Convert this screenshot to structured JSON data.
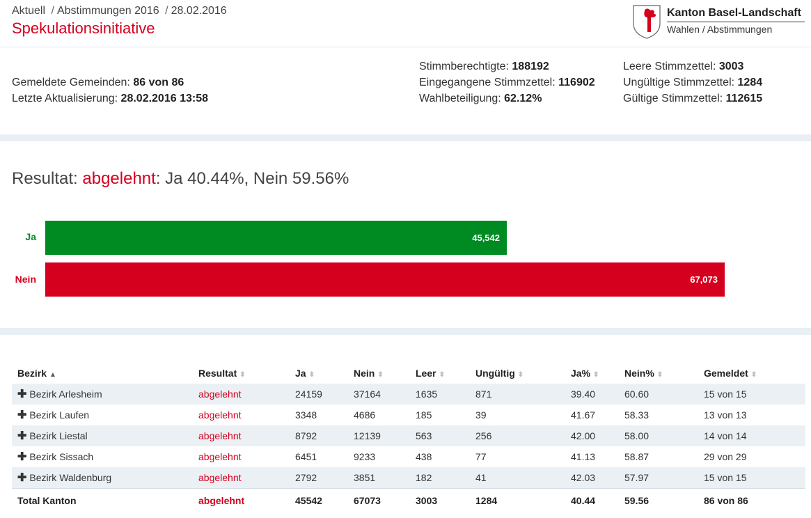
{
  "breadcrumb": {
    "item1": "Aktuell",
    "sep": "/",
    "item2": "Abstimmungen 2016",
    "item3": "28.02.2016"
  },
  "page": {
    "title": "Spekulationsinitiative"
  },
  "brand": {
    "name": "Kanton Basel-Landschaft",
    "subtitle": "Wahlen / Abstimmungen"
  },
  "stats": {
    "gemeinden_label": "Gemeldete Gemeinden:",
    "gemeinden_value": "86 von 86",
    "aktualisierung_label": "Letzte Aktualisierung:",
    "aktualisierung_value": "28.02.2016 13:58",
    "stimmberechtigte_label": "Stimmberechtigte:",
    "stimmberechtigte_value": "188192",
    "eingegangene_label": "Eingegangene Stimmzettel:",
    "eingegangene_value": "116902",
    "wahlbeteiligung_label": "Wahlbeteiligung:",
    "wahlbeteiligung_value": "62.12%",
    "leere_label": "Leere Stimmzettel:",
    "leere_value": "3003",
    "ungueltige_label": "Ungültige Stimmzettel:",
    "ungueltige_value": "1284",
    "gueltige_label": "Gültige Stimmzettel:",
    "gueltige_value": "112615"
  },
  "result": {
    "prefix": "Resultat: ",
    "status": "abgelehnt",
    "suffix": ": Ja 40.44%, Nein 59.56%"
  },
  "colors": {
    "ja": "#008a22",
    "nein": "#d4001e",
    "band": "#e9eff4",
    "row_stripe": "#eaf0f4"
  },
  "bars": {
    "ja_label": "Ja",
    "ja_value": "45,542",
    "ja_votes": 45542,
    "nein_label": "Nein",
    "nein_value": "67,073",
    "nein_votes": 67073
  },
  "table": {
    "headers": [
      "Bezirk",
      "Resultat",
      "Ja",
      "Nein",
      "Leer",
      "Ungültig",
      "Ja%",
      "Nein%",
      "Gemeldet"
    ],
    "rows": [
      [
        "Bezirk Arlesheim",
        "abgelehnt",
        "24159",
        "37164",
        "1635",
        "871",
        "39.40",
        "60.60",
        "15 von 15"
      ],
      [
        "Bezirk Laufen",
        "abgelehnt",
        "3348",
        "4686",
        "185",
        "39",
        "41.67",
        "58.33",
        "13 von 13"
      ],
      [
        "Bezirk Liestal",
        "abgelehnt",
        "8792",
        "12139",
        "563",
        "256",
        "42.00",
        "58.00",
        "14 von 14"
      ],
      [
        "Bezirk Sissach",
        "abgelehnt",
        "6451",
        "9233",
        "438",
        "77",
        "41.13",
        "58.87",
        "29 von 29"
      ],
      [
        "Bezirk Waldenburg",
        "abgelehnt",
        "2792",
        "3851",
        "182",
        "41",
        "42.03",
        "57.97",
        "15 von 15"
      ]
    ],
    "total": [
      "Total Kanton",
      "abgelehnt",
      "45542",
      "67073",
      "3003",
      "1284",
      "40.44",
      "59.56",
      "86 von 86"
    ]
  }
}
